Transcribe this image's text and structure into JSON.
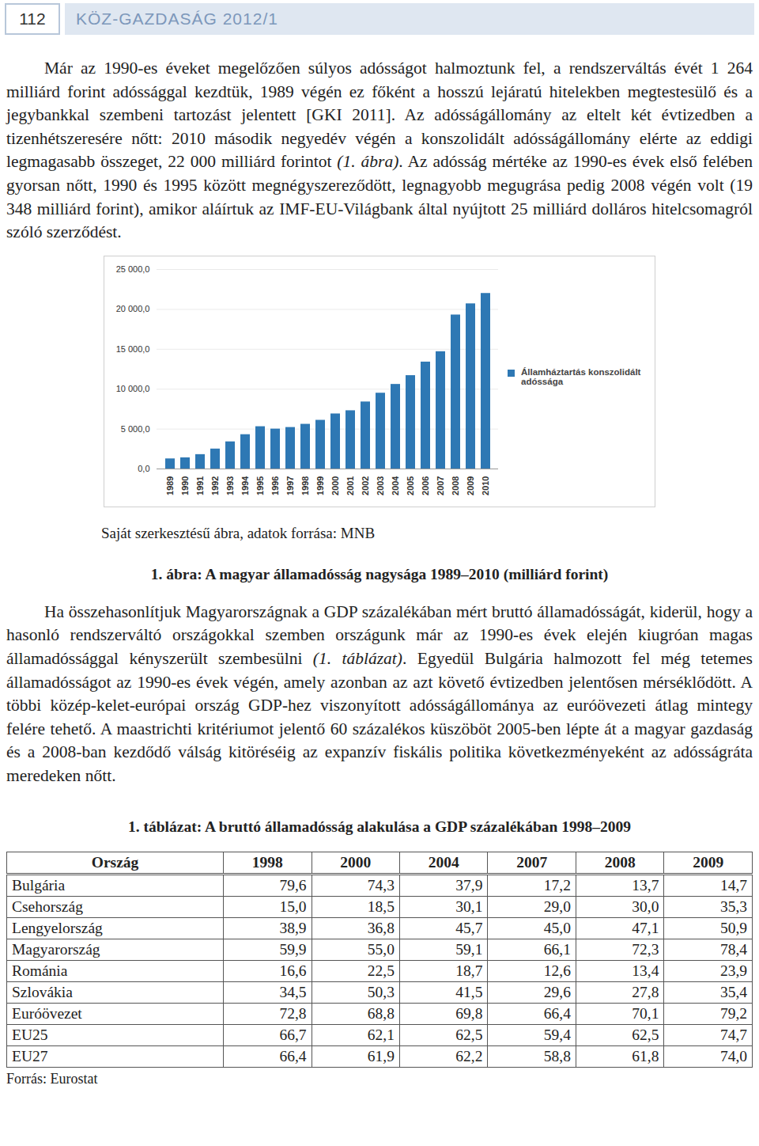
{
  "header": {
    "page": "112",
    "journal": "KÖZ-GAZDASÁG 2012/1"
  },
  "paragraph1": [
    {
      "text": "Már az 1990-es éveket megelőzően súlyos adósságot halmoztunk fel, a rendszerváltás évét 1 264 milliárd forint adóssággal kezdtük, 1989 végén ez főként a hosszú lejáratú hitelekben megtestesülő és a jegybankkal szembeni tartozást jelentett [GKI 2011]. Az adósságállomány az eltelt két évtizedben a tizenhétszeresére nőtt: 2010 második negyedév végén a konszolidált adósságállomány elérte az eddigi legmagasabb összeget, 22 000 milliárd forintot "
    },
    {
      "text": "(1. ábra)",
      "italic": true
    },
    {
      "text": ". Az adósság mértéke az 1990-es évek első felében gyorsan nőtt, 1990 és 1995 között megnégyszereződött, legnagyobb megugrása pedig 2008 végén volt (19 348 milliárd forint), amikor aláírtuk az IMF-EU-Világbank által nyújtott 25 milliárd dolláros hitelcsomagról szóló szerződést."
    }
  ],
  "chart_data": {
    "type": "bar",
    "categories": [
      "1989",
      "1990",
      "1991",
      "1992",
      "1993",
      "1994",
      "1995",
      "1996",
      "1997",
      "1998",
      "1999",
      "2000",
      "2001",
      "2002",
      "2003",
      "2004",
      "2005",
      "2006",
      "2007",
      "2008",
      "2009",
      "2010"
    ],
    "series": [
      {
        "name": "Államháztartás konszolidált adóssága",
        "color": "#2e78b4",
        "values": [
          1264,
          1400,
          1800,
          2500,
          3400,
          4300,
          5300,
          5000,
          5200,
          5600,
          6100,
          6900,
          7300,
          8400,
          9500,
          10600,
          11700,
          13400,
          14700,
          19300,
          20700,
          22000
        ]
      }
    ],
    "ylim": [
      0,
      25000
    ],
    "yticks": [
      {
        "value": 0,
        "label": "0,0"
      },
      {
        "value": 5000,
        "label": "5 000,0"
      },
      {
        "value": 10000,
        "label": "10 000,0"
      },
      {
        "value": 15000,
        "label": "15 000,0"
      },
      {
        "value": 20000,
        "label": "20 000,0"
      },
      {
        "value": 25000,
        "label": "25 000,0"
      }
    ],
    "grid": true,
    "legend": "right"
  },
  "figure_source": "Saját szerkesztésű ábra, adatok forrása: MNB",
  "figure_caption": "1. ábra: A magyar államadósság nagysága 1989–2010 (milliárd forint)",
  "paragraph2": [
    {
      "text": "Ha összehasonlítjuk Magyarországnak a GDP százalékában mért bruttó államadósságát, kiderül, hogy a hasonló rendszerváltó országokkal szemben országunk már az 1990-es évek elején kiugróan magas államadóssággal kényszerült szembesülni "
    },
    {
      "text": "(1. táblázat)",
      "italic": true
    },
    {
      "text": ". Egyedül Bulgária halmozott fel még tetemes államadósságot az 1990-es évek végén, amely azonban az azt követő évtizedben jelentősen mérséklődött. A többi közép-kelet-európai ország GDP-hez viszonyított adósságállománya az euróövezeti átlag mintegy felére tehető. A maastrichti kritériumot jelentő 60 százalékos küszöböt 2005-ben lépte át a magyar gazdaság és a 2008-ban kezdődő válság kitöréséig az expanzív fiskális politika következményeként az adósságráta meredeken nőtt."
    }
  ],
  "table": {
    "title": "1. táblázat: A bruttó államadósság alakulása a GDP százalékában 1998–2009",
    "header": [
      "Ország",
      "1998",
      "2000",
      "2004",
      "2007",
      "2008",
      "2009"
    ],
    "rows": [
      [
        "Bulgária",
        "79,6",
        "74,3",
        "37,9",
        "17,2",
        "13,7",
        "14,7"
      ],
      [
        "Csehország",
        "15,0",
        "18,5",
        "30,1",
        "29,0",
        "30,0",
        "35,3"
      ],
      [
        "Lengyelország",
        "38,9",
        "36,8",
        "45,7",
        "45,0",
        "47,1",
        "50,9"
      ],
      [
        "Magyarország",
        "59,9",
        "55,0",
        "59,1",
        "66,1",
        "72,3",
        "78,4"
      ],
      [
        "Románia",
        "16,6",
        "22,5",
        "18,7",
        "12,6",
        "13,4",
        "23,9"
      ],
      [
        "Szlovákia",
        "34,5",
        "50,3",
        "41,5",
        "29,6",
        "27,8",
        "35,4"
      ],
      [
        "Euróövezet",
        "72,8",
        "68,8",
        "69,8",
        "66,4",
        "70,1",
        "79,2"
      ],
      [
        "EU25",
        "66,7",
        "62,1",
        "62,5",
        "59,4",
        "62,5",
        "74,7"
      ],
      [
        "EU27",
        "66,4",
        "61,9",
        "62,2",
        "58,8",
        "61,8",
        "74,0"
      ]
    ],
    "source": "Forrás: Eurostat"
  }
}
